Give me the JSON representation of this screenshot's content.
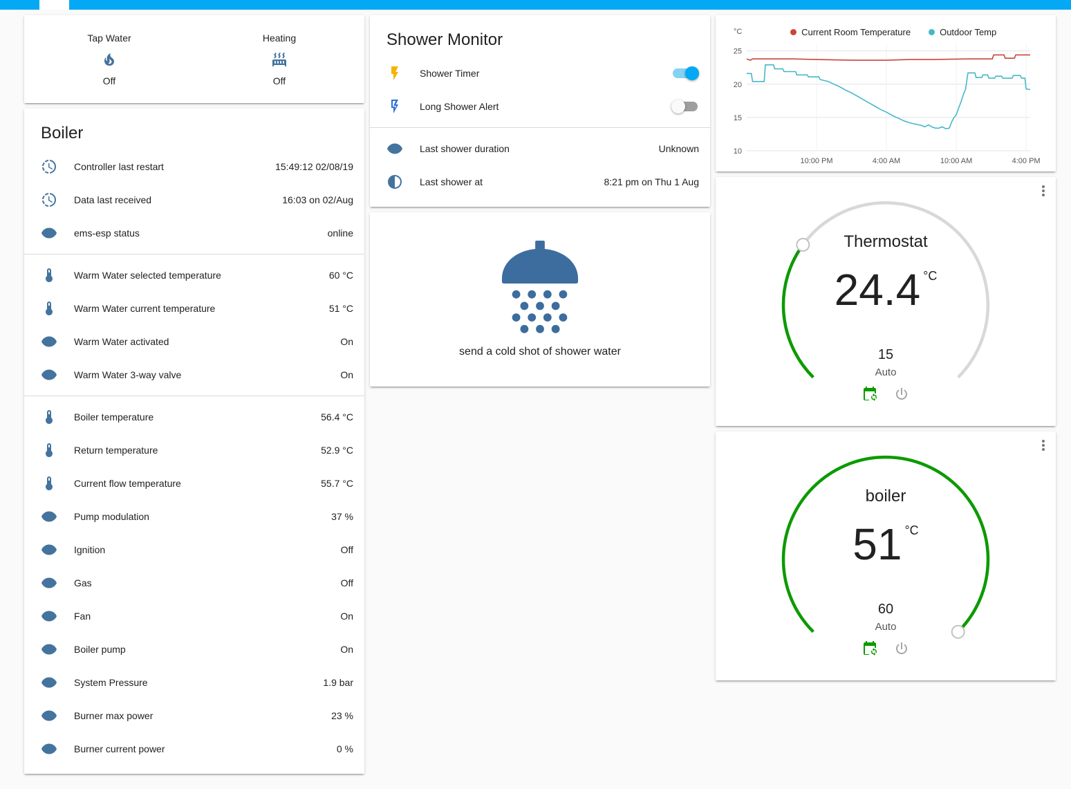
{
  "colors": {
    "topbar": "#03a9f4",
    "page_bg": "#fafafa",
    "card_bg": "#ffffff",
    "text_primary": "#212121",
    "text_secondary": "#727272",
    "icon_blue": "#44739e",
    "toggle_on": "#03a9f4",
    "toggle_track_on": "#84d2f2",
    "toggle_off_thumb": "#fafafa",
    "toggle_track_off": "#9e9e9e",
    "flash_yellow": "#f4b400",
    "flash_blue": "#2a6fdb",
    "shower_blue": "#3d6d9e",
    "gauge_green": "#0c9a00",
    "gauge_track": "#d8d8d8",
    "calendar_green": "#0c9a00",
    "divider": "#d9d9d9"
  },
  "left": {
    "glance": {
      "items": [
        {
          "label": "Tap Water",
          "icon": "fire",
          "state": "Off"
        },
        {
          "label": "Heating",
          "icon": "radiator",
          "state": "Off"
        }
      ]
    },
    "boiler": {
      "title": "Boiler",
      "rows": [
        {
          "icon": "clock",
          "label": "Controller last restart",
          "value": "15:49:12 02/08/19"
        },
        {
          "icon": "clock",
          "label": "Data last received",
          "value": "16:03 on 02/Aug"
        },
        {
          "icon": "eye",
          "label": "ems-esp status",
          "value": "online",
          "divider_after": true
        },
        {
          "icon": "thermometer",
          "label": "Warm Water selected temperature",
          "value": "60 °C"
        },
        {
          "icon": "thermometer",
          "label": "Warm Water current temperature",
          "value": "51 °C"
        },
        {
          "icon": "eye",
          "label": "Warm Water activated",
          "value": "On"
        },
        {
          "icon": "eye",
          "label": "Warm Water 3-way valve",
          "value": "On",
          "divider_after": true
        },
        {
          "icon": "thermometer",
          "label": "Boiler temperature",
          "value": "56.4 °C"
        },
        {
          "icon": "thermometer",
          "label": "Return temperature",
          "value": "52.9 °C"
        },
        {
          "icon": "thermometer",
          "label": "Current flow temperature",
          "value": "55.7 °C"
        },
        {
          "icon": "eye",
          "label": "Pump modulation",
          "value": "37 %"
        },
        {
          "icon": "eye",
          "label": "Ignition",
          "value": "Off"
        },
        {
          "icon": "eye",
          "label": "Gas",
          "value": "Off"
        },
        {
          "icon": "eye",
          "label": "Fan",
          "value": "On"
        },
        {
          "icon": "eye",
          "label": "Boiler pump",
          "value": "On"
        },
        {
          "icon": "eye",
          "label": "System Pressure",
          "value": "1.9 bar"
        },
        {
          "icon": "eye",
          "label": "Burner max power",
          "value": "23 %"
        },
        {
          "icon": "eye",
          "label": "Burner current power",
          "value": "0 %"
        }
      ]
    }
  },
  "middle": {
    "shower_monitor": {
      "title": "Shower Monitor",
      "toggles": [
        {
          "label": "Shower Timer",
          "on": true
        },
        {
          "label": "Long Shower Alert",
          "on": false
        }
      ],
      "rows": [
        {
          "icon": "eye",
          "label": "Last shower duration",
          "value": "Unknown"
        },
        {
          "icon": "moon",
          "label": "Last shower at",
          "value": "8:21 pm on Thu 1 Aug"
        }
      ]
    },
    "shower_action": {
      "caption": "send a cold shot of shower water"
    }
  },
  "right": {
    "thermostat": {
      "title": "Thermostat",
      "value": "24.4",
      "unit": "°C",
      "setpoint": "15",
      "mode": "Auto",
      "dial": {
        "start_deg": 135,
        "sweep_deg": 270,
        "fraction": 0.3
      }
    },
    "boiler_gauge": {
      "title": "boiler",
      "value": "51",
      "unit": "°C",
      "setpoint": "60",
      "mode": "Auto",
      "dial": {
        "start_deg": 135,
        "sweep_deg": 270,
        "fraction": 1
      }
    }
  },
  "chart_data": {
    "type": "line",
    "title": "",
    "xlabel": "",
    "ylabel": "°C",
    "ylim": [
      10,
      26
    ],
    "yticks": [
      10,
      15,
      20,
      25
    ],
    "xlim": [
      0,
      24.35
    ],
    "xticks": [
      {
        "pos": 6,
        "label": "10:00 PM"
      },
      {
        "pos": 12,
        "label": "4:00 AM"
      },
      {
        "pos": 18,
        "label": "10:00 AM"
      },
      {
        "pos": 24,
        "label": "4:00 PM"
      }
    ],
    "legend_position": "top",
    "grid": true,
    "series": [
      {
        "name": "Current Room Temperature",
        "color": "#c9453c",
        "points": [
          [
            0,
            23.8
          ],
          [
            0.3,
            23.6
          ],
          [
            0.5,
            23.8
          ],
          [
            4,
            23.8
          ],
          [
            6,
            23.7
          ],
          [
            9,
            23.6
          ],
          [
            12,
            23.6
          ],
          [
            14,
            23.7
          ],
          [
            16,
            23.7
          ],
          [
            19,
            23.8
          ],
          [
            21.1,
            23.8
          ],
          [
            21.2,
            24.4
          ],
          [
            22.1,
            24.4
          ],
          [
            22.2,
            23.9
          ],
          [
            23.0,
            23.9
          ],
          [
            23.1,
            24.4
          ],
          [
            24.35,
            24.4
          ]
        ]
      },
      {
        "name": "Outdoor Temp",
        "color": "#44b8c7",
        "points": [
          [
            0,
            21.6
          ],
          [
            0.4,
            21.6
          ],
          [
            0.5,
            20.4
          ],
          [
            1.5,
            20.4
          ],
          [
            1.6,
            22.9
          ],
          [
            2.3,
            22.9
          ],
          [
            2.4,
            22.3
          ],
          [
            3.1,
            22.3
          ],
          [
            3.2,
            21.9
          ],
          [
            4.2,
            21.9
          ],
          [
            4.3,
            21.4
          ],
          [
            5.2,
            21.4
          ],
          [
            5.3,
            21.1
          ],
          [
            6.2,
            21.1
          ],
          [
            6.3,
            20.7
          ],
          [
            7,
            20.4
          ],
          [
            7.5,
            20.0
          ],
          [
            8,
            19.6
          ],
          [
            8.5,
            19.1
          ],
          [
            9,
            18.7
          ],
          [
            9.5,
            18.2
          ],
          [
            10,
            17.7
          ],
          [
            10.5,
            17.2
          ],
          [
            11,
            16.7
          ],
          [
            11.5,
            16.2
          ],
          [
            12,
            15.8
          ],
          [
            12.5,
            15.3
          ],
          [
            13,
            14.9
          ],
          [
            13.5,
            14.5
          ],
          [
            14,
            14.2
          ],
          [
            14.5,
            14.0
          ],
          [
            15,
            13.8
          ],
          [
            15.3,
            13.6
          ],
          [
            15.6,
            13.9
          ],
          [
            15.9,
            13.6
          ],
          [
            16.2,
            13.4
          ],
          [
            16.5,
            13.4
          ],
          [
            16.8,
            13.6
          ],
          [
            17.1,
            13.3
          ],
          [
            17.4,
            13.4
          ],
          [
            17.6,
            14.3
          ],
          [
            17.8,
            15.0
          ],
          [
            18.0,
            15.4
          ],
          [
            18.2,
            16.4
          ],
          [
            18.4,
            17.3
          ],
          [
            18.6,
            18.4
          ],
          [
            18.8,
            19.3
          ],
          [
            19.0,
            21.7
          ],
          [
            19.6,
            21.7
          ],
          [
            19.7,
            21.0
          ],
          [
            20.2,
            21.0
          ],
          [
            20.3,
            21.4
          ],
          [
            20.7,
            21.4
          ],
          [
            20.8,
            20.9
          ],
          [
            21.3,
            20.9
          ],
          [
            21.4,
            21.2
          ],
          [
            21.9,
            21.2
          ],
          [
            22.0,
            20.9
          ],
          [
            22.8,
            20.9
          ],
          [
            22.9,
            21.3
          ],
          [
            23.5,
            21.3
          ],
          [
            23.6,
            20.9
          ],
          [
            23.9,
            20.9
          ],
          [
            24.0,
            19.3
          ],
          [
            24.35,
            19.2
          ]
        ]
      }
    ]
  }
}
